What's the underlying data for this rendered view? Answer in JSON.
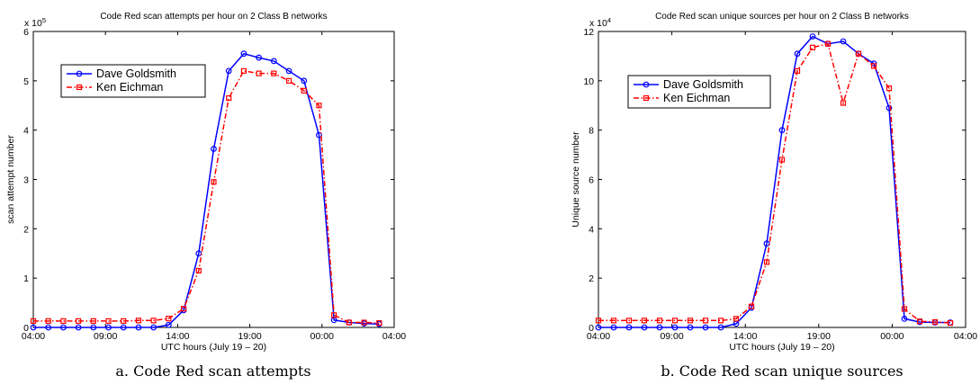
{
  "chart_data": [
    {
      "type": "line",
      "title": "Code Red scan attempts per hour on 2 Class B networks",
      "xlabel": "UTC hours (July 19 – 20)",
      "ylabel": "scan attempt number",
      "y_multiplier": "x 10^5",
      "y_multiplier_base": "x 10",
      "y_multiplier_exp": "5",
      "x_unit": "hours after 04:00 (July 19)",
      "xlim": [
        0,
        24
      ],
      "ylim": [
        0,
        6
      ],
      "xticks": [
        "04:00",
        "09:00",
        "14:00",
        "19:00",
        "00:00",
        "04:00"
      ],
      "yticks": [
        "0",
        "1",
        "2",
        "3",
        "4",
        "5",
        "6"
      ],
      "legend_position": "top-left",
      "caption": "a. Code Red scan attempts",
      "series": [
        {
          "name": "Dave Goldsmith",
          "color": "#0000ff",
          "line": "solid",
          "marker": "circle",
          "x": [
            0,
            1,
            2,
            3,
            4,
            5,
            6,
            7,
            8,
            9,
            10,
            11,
            12,
            13,
            14,
            15,
            16,
            17,
            18,
            19,
            20,
            21,
            22,
            23,
            24
          ],
          "values": [
            0,
            0,
            0,
            0,
            0,
            0,
            0,
            0,
            0,
            0.05,
            0.35,
            1.5,
            3.62,
            5.2,
            5.55,
            5.47,
            5.4,
            5.2,
            5.0,
            3.9,
            0.15,
            0.1,
            0.08,
            0.07,
            null
          ]
        },
        {
          "name": "Ken Eichman",
          "color": "#ff0000",
          "line": "dashdot",
          "marker": "square",
          "x": [
            0,
            1,
            2,
            3,
            4,
            5,
            6,
            7,
            8,
            9,
            10,
            11,
            12,
            13,
            14,
            15,
            16,
            17,
            18,
            19,
            20,
            21,
            22,
            23,
            24
          ],
          "values": [
            0.13,
            0.13,
            0.13,
            0.13,
            0.13,
            0.13,
            0.13,
            0.14,
            0.14,
            0.18,
            0.38,
            1.15,
            2.95,
            4.65,
            5.2,
            5.15,
            5.15,
            5.0,
            4.8,
            4.5,
            0.25,
            0.1,
            0.1,
            0.09,
            null
          ]
        }
      ]
    },
    {
      "type": "line",
      "title": "Code Red scan unique sources per hour on 2 Class B networks",
      "xlabel": "UTC hours (July 19 – 20)",
      "ylabel": "Unique source number",
      "y_multiplier": "x 10^4",
      "y_multiplier_base": "x 10",
      "y_multiplier_exp": "4",
      "x_unit": "hours after 04:00 (July 19)",
      "xlim": [
        0,
        24
      ],
      "ylim": [
        0,
        12
      ],
      "xticks": [
        "04:00",
        "09:00",
        "14:00",
        "19:00",
        "00:00",
        "04:00"
      ],
      "yticks": [
        "0",
        "2",
        "4",
        "6",
        "8",
        "10",
        "12"
      ],
      "legend_position": "top-left",
      "caption": "b. Code Red scan unique sources",
      "series": [
        {
          "name": "Dave Goldsmith",
          "color": "#0000ff",
          "line": "solid",
          "marker": "circle",
          "x": [
            0,
            1,
            2,
            3,
            4,
            5,
            6,
            7,
            8,
            9,
            10,
            11,
            12,
            13,
            14,
            15,
            16,
            17,
            18,
            19,
            20,
            21,
            22,
            23,
            24
          ],
          "values": [
            0,
            0,
            0,
            0,
            0,
            0,
            0,
            0,
            0,
            0.15,
            0.8,
            3.4,
            8.0,
            11.1,
            11.8,
            11.5,
            11.6,
            11.1,
            10.7,
            8.9,
            0.35,
            0.22,
            0.2,
            0.2,
            null
          ]
        },
        {
          "name": "Ken Eichman",
          "color": "#ff0000",
          "line": "dashdot",
          "marker": "square",
          "x": [
            0,
            1,
            2,
            3,
            4,
            5,
            6,
            7,
            8,
            9,
            10,
            11,
            12,
            13,
            14,
            15,
            16,
            17,
            18,
            19,
            20,
            21,
            22,
            23,
            24
          ],
          "values": [
            0.28,
            0.28,
            0.28,
            0.28,
            0.28,
            0.28,
            0.28,
            0.28,
            0.28,
            0.35,
            0.85,
            2.65,
            6.8,
            10.4,
            11.35,
            11.5,
            9.1,
            11.1,
            10.6,
            9.7,
            0.75,
            0.25,
            0.22,
            0.18,
            null
          ]
        }
      ]
    }
  ]
}
